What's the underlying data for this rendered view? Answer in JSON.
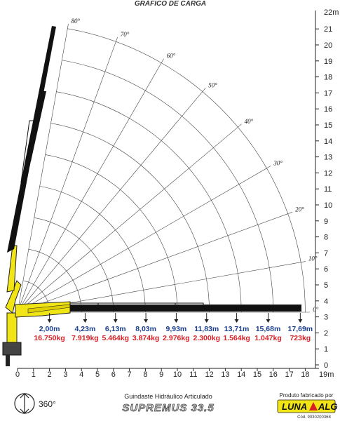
{
  "title": "GRÁFICO DE CARGA",
  "y_axis": {
    "max_label": "22m",
    "ticks": [
      "0",
      "1",
      "2",
      "3",
      "4",
      "5",
      "6",
      "7",
      "8",
      "9",
      "10",
      "11",
      "12",
      "13",
      "14",
      "15",
      "16",
      "17",
      "18",
      "19",
      "20",
      "21"
    ]
  },
  "x_axis": {
    "max_label": "19m",
    "ticks": [
      "0",
      "1",
      "2",
      "3",
      "4",
      "5",
      "6",
      "7",
      "8",
      "9",
      "10",
      "11",
      "12",
      "13",
      "14",
      "15",
      "16",
      "17",
      "18"
    ]
  },
  "angles": [
    "0°",
    "10°",
    "20°",
    "30°",
    "40°",
    "50°",
    "60°",
    "70°",
    "80°"
  ],
  "chart_data": {
    "type": "table",
    "reach_m": [
      2.0,
      4.23,
      6.13,
      8.03,
      9.93,
      11.83,
      13.71,
      15.68,
      17.69
    ],
    "reach_labels": [
      "2,00m",
      "4,23m",
      "6,13m",
      "8,03m",
      "9,93m",
      "11,83m",
      "13,71m",
      "15,68m",
      "17,69m"
    ],
    "load_kg": [
      16750,
      7919,
      5464,
      3874,
      2976,
      2300,
      1564,
      1047,
      723
    ],
    "load_labels": [
      "16.750kg",
      "7.919kg",
      "5.464kg",
      "3.874kg",
      "2.976kg",
      "2.300kg",
      "1.564kg",
      "1.047kg",
      "723kg"
    ],
    "xlim": [
      0,
      19
    ],
    "ylim": [
      0,
      22
    ],
    "boom_angles_deg": [
      0,
      10,
      20,
      30,
      40,
      50,
      60,
      70,
      80
    ],
    "grid": "polar"
  },
  "footer": {
    "rotation": "360°",
    "subtitle": "Guindaste Hidráulico Articulado",
    "model": "SUPREMUS 33.5",
    "maker_label": "Produto fabricado por",
    "brand": "LUNA",
    "brand_suffix": "ALG",
    "code": "Cód. 9030200368"
  },
  "colors": {
    "boom": "#111111",
    "crane_yellow": "#f2e515",
    "reach": "#1a3f8f",
    "load": "#d81f26",
    "grid": "#333333"
  }
}
